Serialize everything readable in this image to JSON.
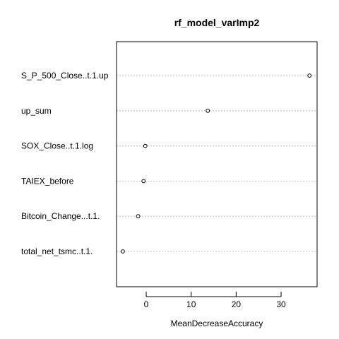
{
  "chart_data": {
    "type": "scatter",
    "title": "rf_model_varImp2",
    "xlabel": "MeanDecreaseAccuracy",
    "ylabel": "",
    "xlim": [
      -6.6,
      38.0
    ],
    "xticks": [
      0,
      10,
      20,
      30
    ],
    "grid": "dotted horizontal lines per variable",
    "categories": [
      "S_P_500_Close..t.1.up",
      "up_sum",
      "SOX_Close..t.1.log",
      "TAIEX_before",
      "Bitcoin_Change...t.1.",
      "total_net_tsmc..t.1."
    ],
    "values": [
      36.3,
      13.7,
      -0.2,
      -0.6,
      -1.8,
      -5.2
    ]
  }
}
